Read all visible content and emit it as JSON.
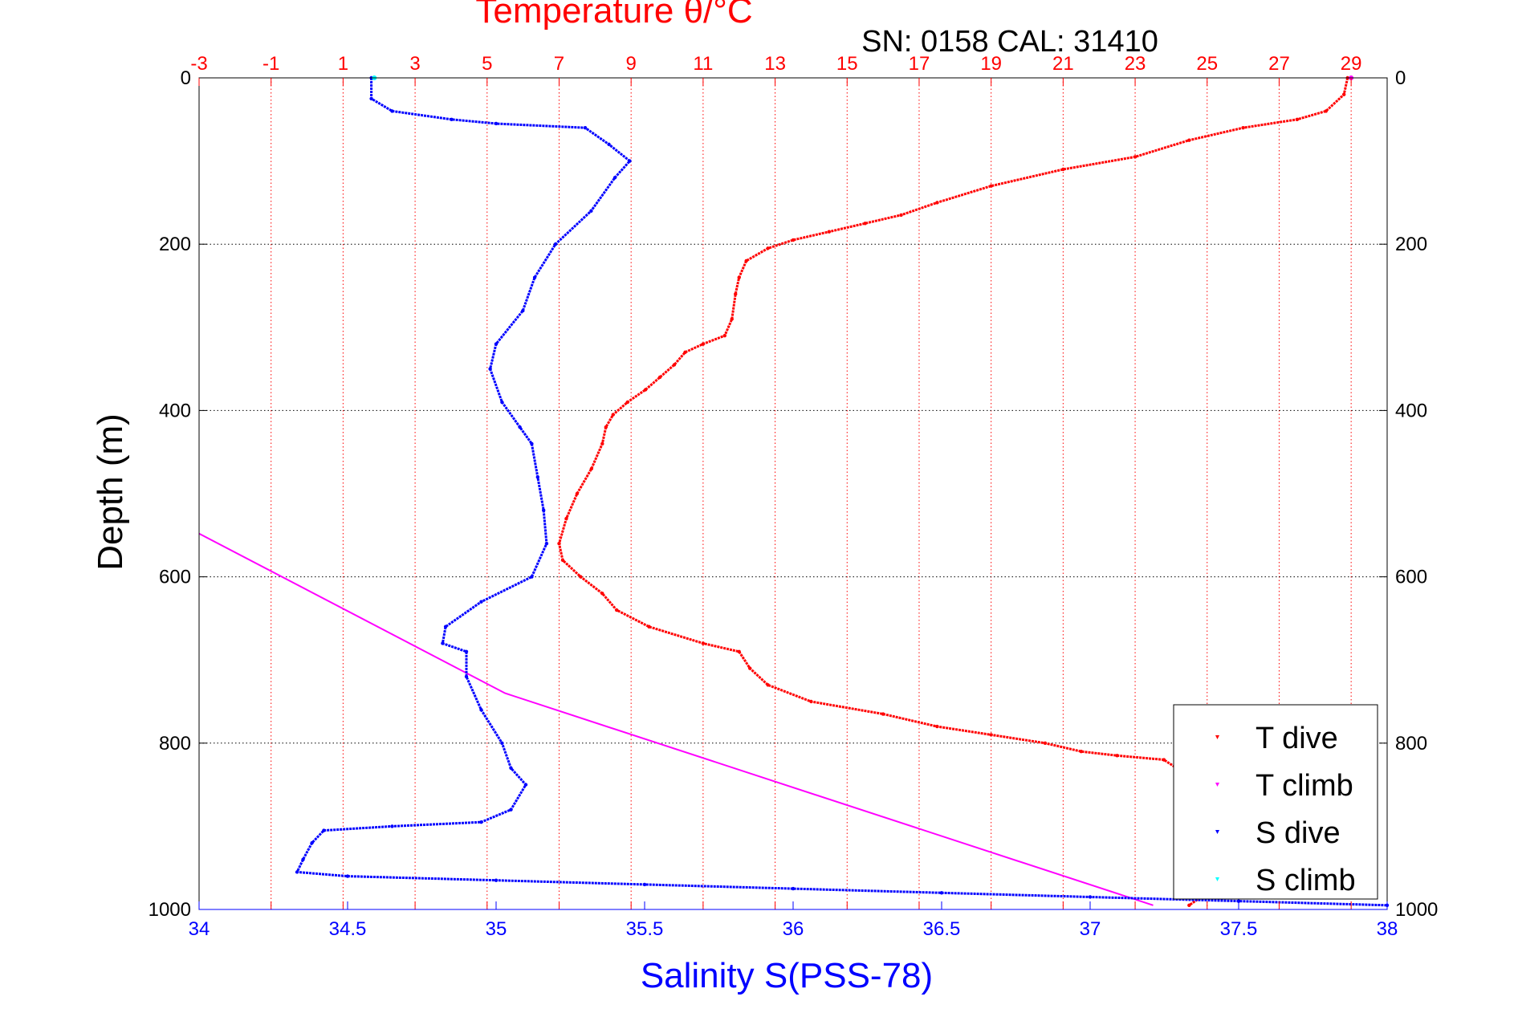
{
  "chart_data": {
    "type": "scatter",
    "title": "Temperature θ/°C",
    "subtitle": "SN: 0158  CAL: 31410",
    "xlabel": "Salinity S(PSS-78)",
    "x2label": "Temperature θ/°C",
    "ylabel": "Depth (m)",
    "xlim": [
      34,
      38
    ],
    "x2lim": [
      -3,
      30
    ],
    "ylim": [
      0,
      1000
    ],
    "y_reversed": true,
    "xticks": [
      34,
      34.5,
      35,
      35.5,
      36,
      36.5,
      37,
      37.5,
      38
    ],
    "xticklabels": [
      "34",
      "34.5",
      "35",
      "35.5",
      "36",
      "36.5",
      "37",
      "37.5",
      "38"
    ],
    "x2ticks": [
      -3,
      -1,
      1,
      3,
      5,
      7,
      9,
      11,
      13,
      15,
      17,
      19,
      21,
      23,
      25,
      27,
      29
    ],
    "x2ticklabels": [
      "-3",
      "-1",
      "1",
      "3",
      "5",
      "7",
      "9",
      "11",
      "13",
      "15",
      "17",
      "19",
      "21",
      "23",
      "25",
      "27",
      "29"
    ],
    "yticks": [
      0,
      200,
      400,
      600,
      800,
      1000
    ],
    "yticklabels": [
      "0",
      "200",
      "400",
      "600",
      "800",
      "1000"
    ],
    "grid": true,
    "legend_position": "bottom-right",
    "colors": {
      "t_dive": "#ff0000",
      "t_climb": "#ff00ff",
      "s_dive": "#0000ff",
      "s_climb": "#00ffff",
      "top_axis": "#ff0000",
      "bottom_axis": "#0000ff"
    },
    "series": [
      {
        "name": "T dive",
        "axis": "top",
        "points": [
          [
            28.9,
            0
          ],
          [
            28.8,
            20
          ],
          [
            28.3,
            40
          ],
          [
            27.5,
            50
          ],
          [
            26.0,
            60
          ],
          [
            24.5,
            75
          ],
          [
            23.0,
            95
          ],
          [
            21.0,
            110
          ],
          [
            19.0,
            130
          ],
          [
            17.5,
            150
          ],
          [
            16.5,
            165
          ],
          [
            15.5,
            175
          ],
          [
            14.5,
            185
          ],
          [
            13.5,
            195
          ],
          [
            12.8,
            205
          ],
          [
            12.2,
            220
          ],
          [
            12.0,
            240
          ],
          [
            11.9,
            260
          ],
          [
            11.8,
            290
          ],
          [
            11.6,
            310
          ],
          [
            11.0,
            320
          ],
          [
            10.5,
            330
          ],
          [
            10.2,
            345
          ],
          [
            9.8,
            360
          ],
          [
            9.4,
            375
          ],
          [
            8.9,
            390
          ],
          [
            8.5,
            405
          ],
          [
            8.3,
            420
          ],
          [
            8.2,
            440
          ],
          [
            7.9,
            470
          ],
          [
            7.5,
            500
          ],
          [
            7.2,
            530
          ],
          [
            7.0,
            560
          ],
          [
            7.1,
            580
          ],
          [
            7.6,
            600
          ],
          [
            8.2,
            620
          ],
          [
            8.6,
            640
          ],
          [
            9.5,
            660
          ],
          [
            11.0,
            680
          ],
          [
            12.0,
            690
          ],
          [
            12.3,
            710
          ],
          [
            12.8,
            730
          ],
          [
            14.0,
            750
          ],
          [
            16.0,
            765
          ],
          [
            17.5,
            780
          ],
          [
            19.0,
            790
          ],
          [
            20.5,
            800
          ],
          [
            21.5,
            810
          ],
          [
            22.5,
            815
          ],
          [
            23.8,
            820
          ],
          [
            24.5,
            840
          ],
          [
            25.0,
            860
          ],
          [
            25.5,
            880
          ],
          [
            26.0,
            900
          ],
          [
            25.8,
            940
          ],
          [
            25.0,
            980
          ],
          [
            24.5,
            995
          ]
        ]
      },
      {
        "name": "T climb",
        "axis": "top",
        "points": [
          [
            -3.0,
            548
          ],
          [
            5.5,
            740
          ],
          [
            23.5,
            995
          ],
          [
            29.0,
            0
          ]
        ]
      },
      {
        "name": "S dive",
        "axis": "bottom",
        "points": [
          [
            34.58,
            0
          ],
          [
            34.58,
            25
          ],
          [
            34.65,
            40
          ],
          [
            34.85,
            50
          ],
          [
            35.0,
            55
          ],
          [
            35.3,
            60
          ],
          [
            35.38,
            80
          ],
          [
            35.45,
            100
          ],
          [
            35.4,
            120
          ],
          [
            35.32,
            160
          ],
          [
            35.2,
            200
          ],
          [
            35.13,
            240
          ],
          [
            35.09,
            280
          ],
          [
            35.0,
            320
          ],
          [
            34.98,
            350
          ],
          [
            35.02,
            390
          ],
          [
            35.08,
            420
          ],
          [
            35.12,
            440
          ],
          [
            35.14,
            480
          ],
          [
            35.16,
            520
          ],
          [
            35.17,
            560
          ],
          [
            35.12,
            600
          ],
          [
            34.95,
            630
          ],
          [
            34.83,
            660
          ],
          [
            34.82,
            680
          ],
          [
            34.9,
            690
          ],
          [
            34.9,
            720
          ],
          [
            34.95,
            760
          ],
          [
            35.02,
            800
          ],
          [
            35.05,
            830
          ],
          [
            35.1,
            850
          ],
          [
            35.05,
            880
          ],
          [
            34.95,
            895
          ],
          [
            34.65,
            900
          ],
          [
            34.42,
            905
          ],
          [
            34.38,
            920
          ],
          [
            34.35,
            940
          ],
          [
            34.33,
            955
          ],
          [
            34.5,
            960
          ],
          [
            35.0,
            965
          ],
          [
            35.5,
            970
          ],
          [
            36.0,
            975
          ],
          [
            36.5,
            980
          ],
          [
            37.0,
            985
          ],
          [
            37.5,
            990
          ],
          [
            38.0,
            995
          ]
        ]
      },
      {
        "name": "S climb",
        "axis": "bottom",
        "points": [
          [
            34.59,
            0
          ]
        ]
      }
    ]
  }
}
